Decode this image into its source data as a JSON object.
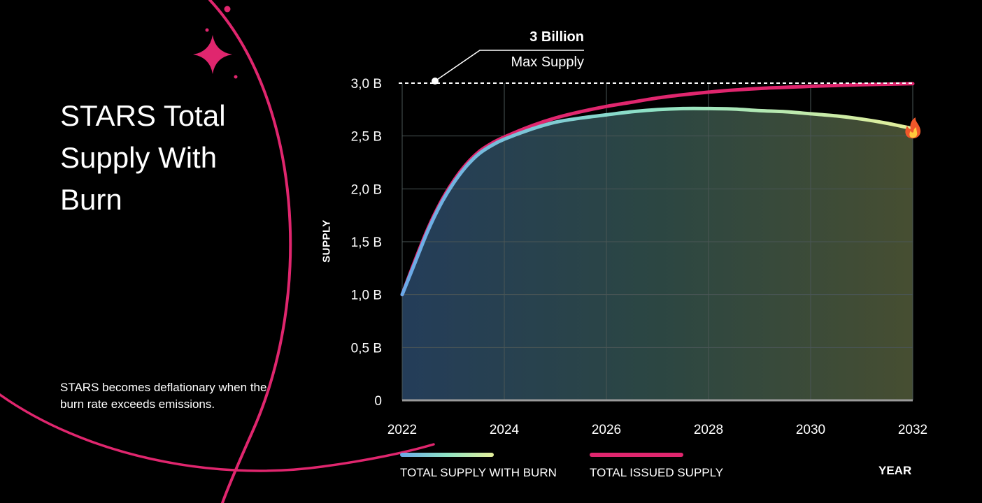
{
  "page": {
    "title": "STARS Total Supply With Burn",
    "note": "STARS becomes deflationary when the burn rate exceeds emissions."
  },
  "colors": {
    "background": "#000000",
    "issued": "#e0266e",
    "burn_start": "#6aa9e8",
    "burn_mid": "#8fe3c4",
    "burn_end": "#e5ef9a",
    "decoration": "#e0266e",
    "grid": "#3c4a4a"
  },
  "icons": {
    "burn_marker": "fire-icon",
    "sparkle": "sparkle-icon"
  },
  "chart_data": {
    "type": "line",
    "title": "",
    "xlabel": "YEAR",
    "ylabel": "SUPPLY",
    "xlim": [
      2022,
      2032
    ],
    "ylim": [
      0,
      3.0
    ],
    "x_ticks": [
      "2022",
      "2024",
      "2026",
      "2028",
      "2030",
      "2032"
    ],
    "y_ticks": [
      "0",
      "0,5 B",
      "1,0 B",
      "1,5 B",
      "2,0 B",
      "2,5 B",
      "3,0 B"
    ],
    "grid": true,
    "legend_position": "bottom",
    "x": [
      2022,
      2022.25,
      2022.5,
      2022.75,
      2023,
      2023.25,
      2023.5,
      2023.75,
      2024,
      2024.5,
      2025,
      2025.5,
      2026,
      2026.5,
      2027,
      2027.5,
      2028,
      2028.5,
      2029,
      2029.5,
      2030,
      2030.5,
      2031,
      2031.5,
      2032
    ],
    "series": [
      {
        "name": "TOTAL SUPPLY WITH BURN",
        "values": [
          1.0,
          1.3,
          1.6,
          1.85,
          2.05,
          2.21,
          2.33,
          2.41,
          2.47,
          2.56,
          2.63,
          2.67,
          2.7,
          2.73,
          2.75,
          2.76,
          2.76,
          2.755,
          2.74,
          2.73,
          2.71,
          2.69,
          2.66,
          2.62,
          2.57
        ]
      },
      {
        "name": "TOTAL ISSUED SUPPLY",
        "values": [
          1.0,
          1.32,
          1.62,
          1.87,
          2.07,
          2.23,
          2.35,
          2.43,
          2.49,
          2.59,
          2.67,
          2.73,
          2.78,
          2.82,
          2.86,
          2.89,
          2.915,
          2.935,
          2.95,
          2.96,
          2.97,
          2.978,
          2.985,
          2.99,
          2.995
        ]
      }
    ],
    "annotations": [
      {
        "value": "3 Billion",
        "label": "Max Supply",
        "y": 3.0
      }
    ]
  }
}
